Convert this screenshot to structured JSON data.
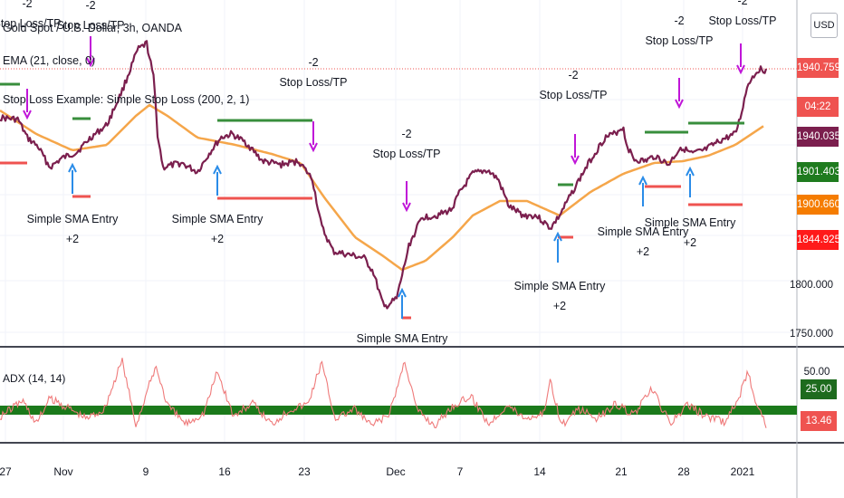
{
  "header": {
    "title": "Gold Spot / U.S. Dollar, 3h, OANDA",
    "ema_label": "EMA (21, close, 0)",
    "strategy_label": "Stop Loss Example: Simple Stop Loss (200, 2, 1)"
  },
  "currency_button": "USD",
  "adx_label": "ADX (14, 14)",
  "colors": {
    "price_line": "#7b1f4e",
    "ema_line": "#f5a64a",
    "adx_line": "#ef7a7a",
    "threshold_band": "#1b7a1b",
    "entry_arrow": "#2a8ce8",
    "exit_arrow": "#c015d8",
    "stop_line": "#ef5350",
    "target_line": "#388e3c"
  },
  "price_badges": [
    {
      "value": "1940.759",
      "color": "#ef5350"
    },
    {
      "value": "04:22",
      "color": "#ef5350"
    },
    {
      "value": "1940.035",
      "color": "#7b1f4e"
    },
    {
      "value": "1901.403",
      "color": "#1e7b1e"
    },
    {
      "value": "1900.660",
      "color": "#f57c00"
    },
    {
      "value": "1844.925",
      "color": "#ff1a1a"
    }
  ],
  "adx_badges": [
    {
      "value": "25.00",
      "color": "#1e6b1e"
    },
    {
      "value": "13.46",
      "color": "#ef5350"
    }
  ],
  "chart_data": {
    "type": "line",
    "price_axis_ticks": [
      "1800.000",
      "1750.000"
    ],
    "adx_axis_ticks": [
      "50.00"
    ],
    "x_ticks": [
      "27",
      "Nov",
      "9",
      "16",
      "23",
      "Dec",
      "7",
      "14",
      "21",
      "28",
      "2021"
    ],
    "adx_threshold": 25,
    "last_price": 1940.759,
    "ema_last": 1900.66,
    "adx_last": 13.46,
    "trade_labels": [
      {
        "kind": "entry",
        "lines": [
          "Simple SMA Entry",
          "+2"
        ]
      },
      {
        "kind": "entry",
        "lines": [
          "Simple SMA Entry",
          "+2"
        ]
      },
      {
        "kind": "entry",
        "lines": [
          "Simple SMA Entry"
        ]
      },
      {
        "kind": "entry",
        "lines": [
          "Simple SMA Entry",
          "+2"
        ]
      },
      {
        "kind": "entry",
        "lines": [
          "Simple SMA Entry",
          "+2"
        ]
      },
      {
        "kind": "entry",
        "lines": [
          "Simple SMA Entry",
          "+2"
        ]
      },
      {
        "kind": "exit",
        "lines": [
          "-2",
          "Stop Loss/TP"
        ]
      },
      {
        "kind": "exit",
        "lines": [
          "-2",
          "Stop Loss/TP"
        ]
      },
      {
        "kind": "exit",
        "lines": [
          "-2",
          "Stop Loss/TP"
        ]
      },
      {
        "kind": "exit",
        "lines": [
          "-2",
          "Stop Loss/TP"
        ]
      },
      {
        "kind": "exit",
        "lines": [
          "-2",
          "Stop Loss/TP"
        ]
      },
      {
        "kind": "exit",
        "lines": [
          "-2",
          "Stop Loss/TP"
        ]
      }
    ]
  }
}
